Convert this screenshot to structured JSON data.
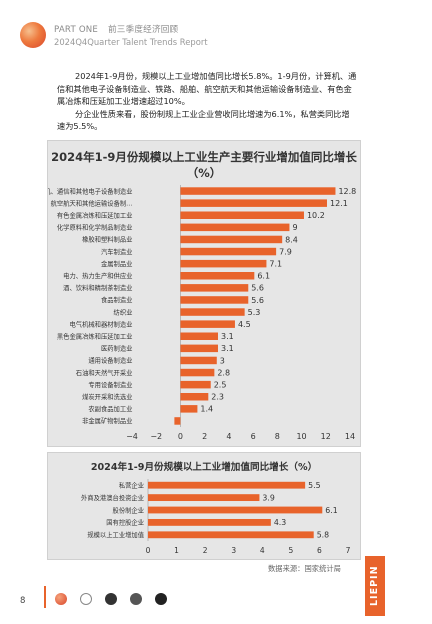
{
  "header": {
    "part": "PART ONE",
    "section": "前三季度经济回顾",
    "subtitle": "2024Q4Quarter Talent Trends Report"
  },
  "intro": {
    "p1": "2024年1-9月份，规模以上工业增加值同比增长5.8%。1-9月份，计算机、通信和其他电子设备制造业、铁路、船舶、航空航天和其他运输设备制造业、有色金属冶炼和压延加工业增速超过10%。",
    "p2": "分企业性质来看，股份制规上工业企业营收同比增速为6.1%，私营类同比增速为5.5%。"
  },
  "chart_data": [
    {
      "type": "bar",
      "orientation": "horizontal",
      "title": "2024年1-9月份规模以上工业生产主要行业增加值同比增长（%）",
      "categories": [
        "计算机、通信和其他电子设备制造业",
        "铁路、船舶、航空航天和其他运输设备制…",
        "有色金属冶炼和压延加工业",
        "化学原料和化学制品制造业",
        "橡胶和塑料制品业",
        "汽车制造业",
        "金属制品业",
        "电力、热力生产和供应业",
        "酒、饮料和精制茶制造业",
        "食品制造业",
        "纺织业",
        "电气机械和器材制造业",
        "黑色金属冶炼和压延加工业",
        "医药制造业",
        "通用设备制造业",
        "石油和天然气开采业",
        "专用设备制造业",
        "煤炭开采和洗选业",
        "农副食品加工业",
        "非金属矿物制品业"
      ],
      "values": [
        12.8,
        12.1,
        10.2,
        9,
        8.4,
        7.9,
        7.1,
        6.1,
        5.6,
        5.6,
        5.3,
        4.5,
        3.1,
        3.1,
        3,
        2.8,
        2.5,
        2.3,
        1.4,
        -0.5
      ],
      "value_labels": [
        "12.8",
        "12.1",
        "10.2",
        "9",
        "8.4",
        "7.9",
        "7.1",
        "6.1",
        "5.6",
        "5.6",
        "5.3",
        "4.5",
        "3.1",
        "3.1",
        "3",
        "2.8",
        "2.5",
        "2.3",
        "1.4",
        ""
      ],
      "xlim": [
        -4,
        14
      ],
      "xticks": [
        "−4",
        "−2",
        "0",
        "2",
        "4",
        "6",
        "8",
        "10",
        "12",
        "14"
      ],
      "xtick_values": [
        -4,
        -2,
        0,
        2,
        4,
        6,
        8,
        10,
        12,
        14
      ],
      "grid": false,
      "bar_color": "#e8632b"
    },
    {
      "type": "bar",
      "orientation": "horizontal",
      "title": "2024年1-9月份规模以上工业增加值同比增长（%）",
      "categories": [
        "私营企业",
        "外商及港澳台投资企业",
        "股份制企业",
        "国有控股企业",
        "规模以上工业增加值"
      ],
      "values": [
        5.5,
        3.9,
        6.1,
        4.3,
        5.8
      ],
      "value_labels": [
        "5.5",
        "3.9",
        "6.1",
        "4.3",
        "5.8"
      ],
      "xlim": [
        0,
        7
      ],
      "xticks": [
        "0",
        "1",
        "2",
        "3",
        "4",
        "5",
        "6",
        "7"
      ],
      "xtick_values": [
        0,
        1,
        2,
        3,
        4,
        5,
        6,
        7
      ],
      "grid": false,
      "bar_color": "#e8632b"
    }
  ],
  "source": "数据来源：国家统计局",
  "footer": {
    "page_number": "8",
    "brand": "LIEPIN"
  }
}
